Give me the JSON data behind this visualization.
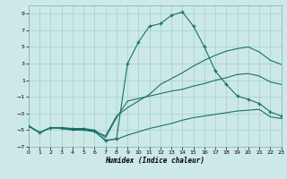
{
  "xlabel": "Humidex (Indice chaleur)",
  "xlim": [
    0,
    23
  ],
  "ylim": [
    -7,
    10
  ],
  "yticks": [
    -7,
    -5,
    -3,
    -1,
    1,
    3,
    5,
    7,
    9
  ],
  "xticks": [
    0,
    1,
    2,
    3,
    4,
    5,
    6,
    7,
    8,
    9,
    10,
    11,
    12,
    13,
    14,
    15,
    16,
    17,
    18,
    19,
    20,
    21,
    22,
    23
  ],
  "background_color": "#cce9e7",
  "grid_color": "#9fcfcc",
  "line_color": "#1a7068",
  "curve_main_x": [
    0,
    1,
    2,
    3,
    4,
    5,
    6,
    7,
    8,
    9,
    10,
    11,
    12,
    13,
    14,
    15,
    16,
    17,
    18,
    19,
    20,
    21,
    22,
    23
  ],
  "curve_main_y": [
    -4.5,
    -5.3,
    -4.7,
    -4.7,
    -4.9,
    -4.9,
    -5.1,
    -6.3,
    -6.0,
    3.0,
    5.6,
    7.5,
    7.8,
    8.8,
    9.2,
    7.5,
    5.0,
    2.1,
    0.5,
    -0.9,
    -1.3,
    -1.8,
    -2.8,
    -3.3
  ],
  "curve_a_x": [
    0,
    1,
    2,
    3,
    4,
    5,
    6,
    7,
    8,
    9,
    10,
    11,
    12,
    13,
    14,
    15,
    16,
    17,
    18,
    19,
    20,
    21,
    22,
    23
  ],
  "curve_a_y": [
    -4.5,
    -5.3,
    -4.7,
    -4.8,
    -4.9,
    -4.9,
    -5.1,
    -5.7,
    -3.3,
    -2.3,
    -1.5,
    -0.7,
    0.5,
    1.2,
    1.9,
    2.7,
    3.4,
    4.0,
    4.5,
    4.8,
    5.0,
    4.4,
    3.4,
    2.9
  ],
  "curve_b_x": [
    0,
    1,
    2,
    3,
    4,
    5,
    6,
    7,
    8,
    9,
    10,
    11,
    12,
    13,
    14,
    15,
    16,
    17,
    18,
    19,
    20,
    21,
    22,
    23
  ],
  "curve_b_y": [
    -4.5,
    -5.3,
    -4.7,
    -4.7,
    -4.8,
    -4.8,
    -5.0,
    -5.9,
    -3.5,
    -1.5,
    -1.2,
    -0.9,
    -0.6,
    -0.3,
    -0.1,
    0.3,
    0.6,
    1.0,
    1.3,
    1.7,
    1.8,
    1.5,
    0.8,
    0.5
  ],
  "curve_flat_x": [
    0,
    1,
    2,
    3,
    4,
    5,
    6,
    7,
    8,
    9,
    10,
    11,
    12,
    13,
    14,
    15,
    16,
    17,
    18,
    19,
    20,
    21,
    22,
    23
  ],
  "curve_flat_y": [
    -4.5,
    -5.3,
    -4.7,
    -4.8,
    -5.0,
    -5.0,
    -5.2,
    -6.2,
    -6.1,
    -5.6,
    -5.2,
    -4.8,
    -4.5,
    -4.2,
    -3.8,
    -3.5,
    -3.3,
    -3.1,
    -2.9,
    -2.7,
    -2.6,
    -2.5,
    -3.4,
    -3.6
  ]
}
